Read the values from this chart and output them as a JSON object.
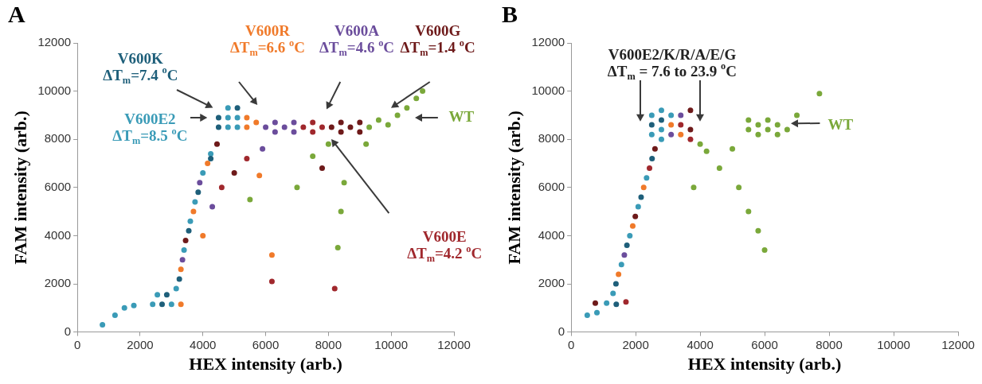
{
  "chart_data": [
    {
      "type": "scatter",
      "title": "A",
      "xlabel": "HEX intensity (arb.)",
      "ylabel": "FAM intensity (arb.)",
      "xlim": [
        0,
        12000
      ],
      "ylim": [
        0,
        12000
      ],
      "xticks": [
        0,
        2000,
        4000,
        6000,
        8000,
        10000,
        12000
      ],
      "yticks": [
        0,
        2000,
        4000,
        6000,
        8000,
        10000,
        12000
      ],
      "grid": false,
      "legend": false,
      "marker": "circle",
      "series": [
        {
          "color": "#1e5f7a",
          "x": [
            4500,
            4500,
            5100,
            3250,
            3550,
            3850,
            4250,
            2700,
            2850
          ],
          "values": [
            8500,
            8900,
            9300,
            2200,
            4200,
            5800,
            7200,
            1150,
            1550
          ]
        },
        {
          "color": "#f07a2a",
          "x": [
            5400,
            5400,
            5700,
            3300,
            3700,
            4150,
            4000,
            5800,
            6200,
            3300
          ],
          "values": [
            8500,
            8900,
            8700,
            2600,
            5000,
            7000,
            4000,
            6500,
            3200,
            1150
          ]
        },
        {
          "color": "#6b4d9c",
          "x": [
            6000,
            6300,
            6300,
            6600,
            6900,
            6900,
            3350,
            3900,
            4300,
            5900
          ],
          "values": [
            8500,
            8300,
            8700,
            8500,
            8300,
            8700,
            3000,
            6200,
            5200,
            7600
          ]
        },
        {
          "color": "#a0282d",
          "x": [
            7200,
            7500,
            7500,
            7800,
            4600,
            5400,
            8200,
            6200
          ],
          "values": [
            8500,
            8300,
            8700,
            8500,
            6000,
            7200,
            1800,
            2100
          ]
        },
        {
          "color": "#7aa83a",
          "x": [
            9300,
            9600,
            9900,
            10200,
            10500,
            10800,
            11000,
            8400,
            8300,
            7000,
            5500,
            8500,
            9200,
            8000,
            7500
          ],
          "values": [
            8500,
            8800,
            8600,
            9000,
            9300,
            9700,
            10000,
            5000,
            3500,
            6000,
            5500,
            6200,
            7800,
            7800,
            7300
          ]
        },
        {
          "color": "#6e1a1a",
          "x": [
            8100,
            8400,
            8400,
            8700,
            9000,
            9000,
            3450,
            4450,
            5000,
            7800
          ],
          "values": [
            8500,
            8300,
            8700,
            8500,
            8300,
            8700,
            3800,
            7800,
            6600,
            6800
          ]
        },
        {
          "color": "#3a9bb7",
          "x": [
            4800,
            4800,
            5100,
            5100,
            4800,
            3150,
            3400,
            3600,
            3750,
            4000,
            4250,
            2400,
            3000,
            2550,
            1500,
            1200,
            1800,
            800
          ],
          "values": [
            8500,
            8900,
            8500,
            8900,
            9300,
            1800,
            3400,
            4600,
            5400,
            6600,
            7400,
            1150,
            1150,
            1550,
            1000,
            700,
            1100,
            300
          ]
        }
      ],
      "annotations": [
        "V600K\nΔT$_{m}$=7.4 $^{o}$C",
        "V600R\nΔT$_{m}$=6.6 $^{o}$C",
        "V600A\nΔT$_{m}$=4.6 $^{o}$C",
        "V600E\nΔT$_{m}$=4.2 $^{o}$C",
        "WT",
        "V600G\nΔT$_{m}$=1.4 $^{o}$C",
        "V600E2\nΔT$_{m}$=8.5 $^{o}$C"
      ]
    },
    {
      "type": "scatter",
      "title": "B",
      "xlabel": "HEX intensity (arb.)",
      "ylabel": "FAM intensity (arb.)",
      "xlim": [
        0,
        12000
      ],
      "ylim": [
        0,
        12000
      ],
      "xticks": [
        0,
        2000,
        4000,
        6000,
        8000,
        10000,
        12000
      ],
      "yticks": [
        0,
        2000,
        4000,
        6000,
        8000,
        10000,
        12000
      ],
      "grid": false,
      "legend": false,
      "marker": "circle",
      "series": [
        {
          "color": "#7aa83a",
          "x": [
            5500,
            5800,
            5800,
            6100,
            6100,
            6400,
            6400,
            6700,
            5500,
            4200,
            4600,
            5200,
            5500,
            5800,
            6000,
            4000,
            7000,
            7700,
            5000,
            3800
          ],
          "values": [
            8400,
            8200,
            8600,
            8400,
            8800,
            8200,
            8600,
            8400,
            8800,
            7500,
            6800,
            6000,
            5000,
            4200,
            3400,
            7800,
            9000,
            9900,
            7600,
            6000
          ]
        },
        {
          "color": "#6e1a1a",
          "x": [
            3700,
            3700,
            1990,
            2600,
            750
          ],
          "values": [
            8400,
            9200,
            4800,
            7600,
            1200
          ]
        },
        {
          "color": "#a0282d",
          "x": [
            3400,
            3700,
            2430,
            1700
          ],
          "values": [
            8600,
            8000,
            6800,
            1250
          ]
        },
        {
          "color": "#6b4d9c",
          "x": [
            3100,
            3400,
            1650
          ],
          "values": [
            8200,
            9000,
            3200
          ]
        },
        {
          "color": "#f07a2a",
          "x": [
            3100,
            3400,
            1470,
            1910,
            2250
          ],
          "values": [
            8600,
            8200,
            2400,
            4400,
            6000
          ]
        },
        {
          "color": "#1e5f7a",
          "x": [
            2500,
            2800,
            1390,
            1730,
            2170,
            2510,
            1400
          ],
          "values": [
            8600,
            8800,
            2000,
            3600,
            5600,
            7200,
            1150
          ]
        },
        {
          "color": "#3a9bb7",
          "x": [
            2500,
            2500,
            2800,
            2800,
            2800,
            3100,
            1300,
            1560,
            1820,
            2080,
            2340,
            1100,
            800,
            500
          ],
          "values": [
            8200,
            9000,
            8000,
            8400,
            9200,
            9000,
            1600,
            2800,
            4000,
            5200,
            6400,
            1200,
            800,
            700
          ]
        }
      ],
      "annotations": [
        "V600E2/K/R/A/E/G\nΔT$_{m}$ = 7.6 to 23.9 $^{o}$C",
        "WT"
      ]
    }
  ]
}
